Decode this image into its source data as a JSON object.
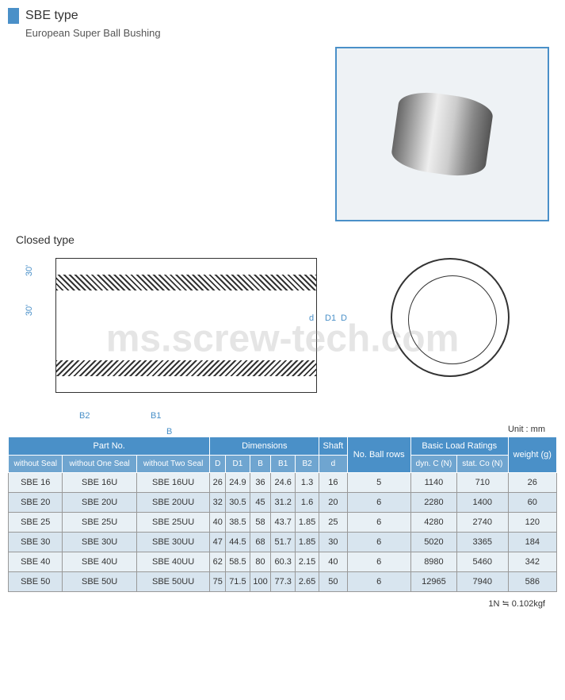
{
  "header": {
    "title": "SBE type",
    "subtitle": "European Super Ball Bushing"
  },
  "sections": {
    "closed_label": "Closed type",
    "unit_label": "Unit : mm",
    "footer_note": "1N ≒ 0.102kgf"
  },
  "diagram_labels": {
    "angle1": "30'",
    "angle2": "30'",
    "dim_d_small": "d",
    "dim_d1": "D1",
    "dim_d_big": "D",
    "dim_b2": "B2",
    "dim_b1": "B1",
    "dim_b": "B"
  },
  "table": {
    "header_groups": {
      "part_no": "Part No.",
      "dimensions": "Dimensions",
      "shaft": "Shaft",
      "ball_rows": "No. Ball rows",
      "load_ratings": "Basic Load Ratings",
      "weight": "weight (g)"
    },
    "sub_headers": {
      "without_seal": "without Seal",
      "without_one_seal": "without One Seal",
      "without_two_seal": "without Two Seal",
      "D": "D",
      "D1": "D1",
      "B": "B",
      "B1": "B1",
      "B2": "B2",
      "d": "d",
      "dyn_c": "dyn. C (N)",
      "stat_co": "stat. Co (N)"
    },
    "rows": [
      {
        "ws": "SBE 16",
        "w1s": "SBE 16U",
        "w2s": "SBE 16UU",
        "D": "26",
        "D1": "24.9",
        "B": "36",
        "B1": "24.6",
        "B2": "1.3",
        "d": "16",
        "rows": "5",
        "dyn": "1140",
        "stat": "710",
        "wt": "26"
      },
      {
        "ws": "SBE 20",
        "w1s": "SBE 20U",
        "w2s": "SBE 20UU",
        "D": "32",
        "D1": "30.5",
        "B": "45",
        "B1": "31.2",
        "B2": "1.6",
        "d": "20",
        "rows": "6",
        "dyn": "2280",
        "stat": "1400",
        "wt": "60"
      },
      {
        "ws": "SBE 25",
        "w1s": "SBE 25U",
        "w2s": "SBE 25UU",
        "D": "40",
        "D1": "38.5",
        "B": "58",
        "B1": "43.7",
        "B2": "1.85",
        "d": "25",
        "rows": "6",
        "dyn": "4280",
        "stat": "2740",
        "wt": "120"
      },
      {
        "ws": "SBE 30",
        "w1s": "SBE 30U",
        "w2s": "SBE 30UU",
        "D": "47",
        "D1": "44.5",
        "B": "68",
        "B1": "51.7",
        "B2": "1.85",
        "d": "30",
        "rows": "6",
        "dyn": "5020",
        "stat": "3365",
        "wt": "184"
      },
      {
        "ws": "SBE 40",
        "w1s": "SBE 40U",
        "w2s": "SBE 40UU",
        "D": "62",
        "D1": "58.5",
        "B": "80",
        "B1": "60.3",
        "B2": "2.15",
        "d": "40",
        "rows": "6",
        "dyn": "8980",
        "stat": "5460",
        "wt": "342"
      },
      {
        "ws": "SBE 50",
        "w1s": "SBE 50U",
        "w2s": "SBE 50UU",
        "D": "75",
        "D1": "71.5",
        "B": "100",
        "B1": "77.3",
        "B2": "2.65",
        "d": "50",
        "rows": "6",
        "dyn": "12965",
        "stat": "7940",
        "wt": "586"
      }
    ]
  },
  "watermark": "ms.screw-tech.com",
  "styling": {
    "accent_color": "#4a90c8",
    "header_bg": "#4a90c8",
    "subheader_bg": "#6fa5d0",
    "row_bg_odd": "#e8f0f5",
    "row_bg_even": "#d8e5ef",
    "border_color": "#999",
    "title_fontsize": 16,
    "table_fontsize": 11
  }
}
